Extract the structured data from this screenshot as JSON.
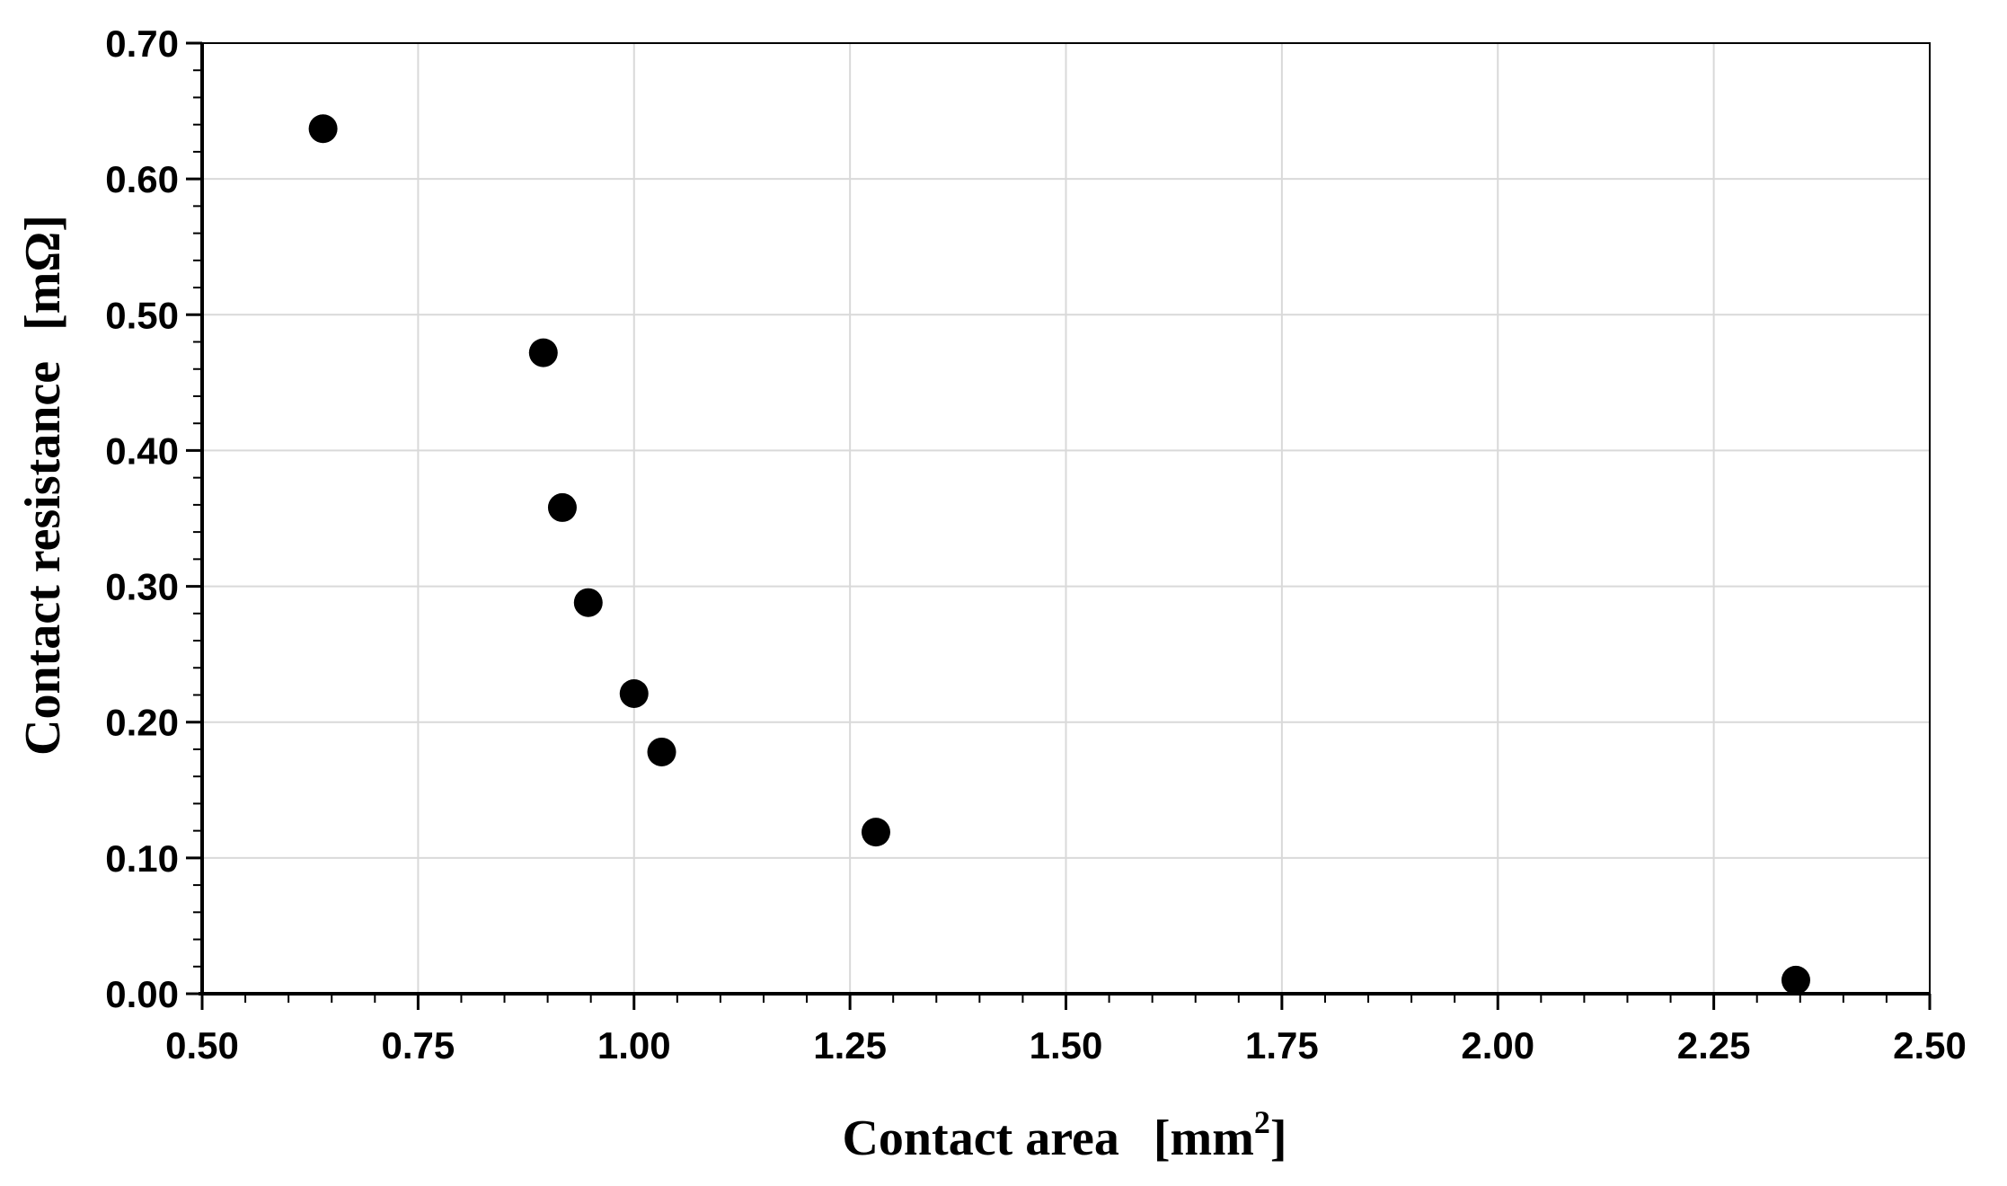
{
  "chart_data": {
    "type": "scatter",
    "title": "",
    "xlabel": "Contact area",
    "xlabel_unit_prefix": "[mm",
    "xlabel_unit_superscript": "2",
    "xlabel_unit_suffix": "]",
    "ylabel": "Contact resistance",
    "ylabel_unit": "[mΩ]",
    "xlim": [
      0.5,
      2.5
    ],
    "ylim": [
      0.0,
      0.7
    ],
    "x_ticks": [
      "0.50",
      "0.75",
      "1.00",
      "1.25",
      "1.50",
      "1.75",
      "2.00",
      "2.25",
      "2.50"
    ],
    "y_ticks": [
      "0.00",
      "0.10",
      "0.20",
      "0.30",
      "0.40",
      "0.50",
      "0.60",
      "0.70"
    ],
    "grid": true,
    "legend": "none",
    "marker_color": "#000000",
    "grid_color": "#d9d9d9",
    "series": [
      {
        "points": [
          {
            "x": 0.64,
            "y": 0.637
          },
          {
            "x": 0.895,
            "y": 0.472
          },
          {
            "x": 0.917,
            "y": 0.358
          },
          {
            "x": 0.947,
            "y": 0.288
          },
          {
            "x": 1.0,
            "y": 0.221
          },
          {
            "x": 1.032,
            "y": 0.178
          },
          {
            "x": 1.28,
            "y": 0.119
          },
          {
            "x": 2.345,
            "y": 0.01
          }
        ]
      }
    ]
  }
}
